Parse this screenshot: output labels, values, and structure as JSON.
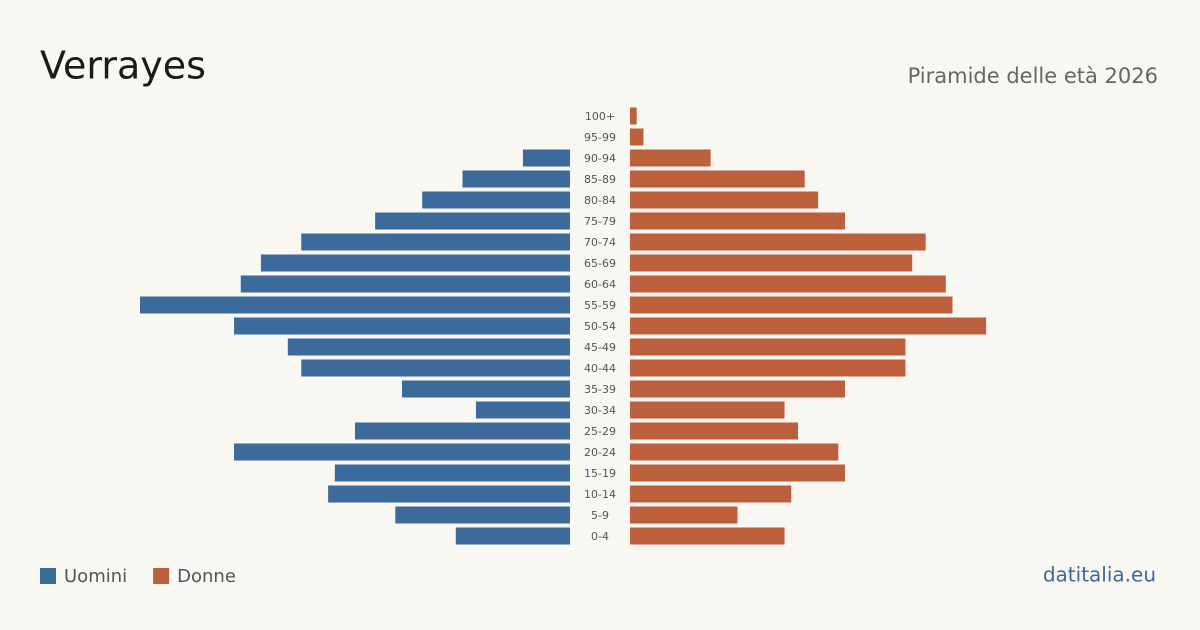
{
  "chart_data": {
    "type": "pyramid",
    "title": "Verrayes",
    "subtitle": "Piramide delle età 2026",
    "source": "datitalia.eu",
    "categories": [
      "100+",
      "95-99",
      "90-94",
      "85-89",
      "80-84",
      "75-79",
      "70-74",
      "65-69",
      "60-64",
      "55-59",
      "50-54",
      "45-49",
      "40-44",
      "35-39",
      "30-34",
      "25-29",
      "20-24",
      "15-19",
      "10-14",
      "5-9",
      "0-4"
    ],
    "series": [
      {
        "name": "Uomini",
        "color": "#3b6a9b",
        "values": [
          0,
          0,
          7,
          16,
          22,
          29,
          40,
          46,
          49,
          64,
          50,
          42,
          40,
          25,
          14,
          32,
          50,
          35,
          36,
          26,
          17
        ]
      },
      {
        "name": "Donne",
        "color": "#bb5f3d",
        "values": [
          1,
          2,
          12,
          26,
          28,
          32,
          44,
          42,
          47,
          48,
          53,
          41,
          41,
          32,
          23,
          25,
          31,
          32,
          24,
          16,
          23
        ]
      }
    ],
    "legend": "bottom-left"
  }
}
